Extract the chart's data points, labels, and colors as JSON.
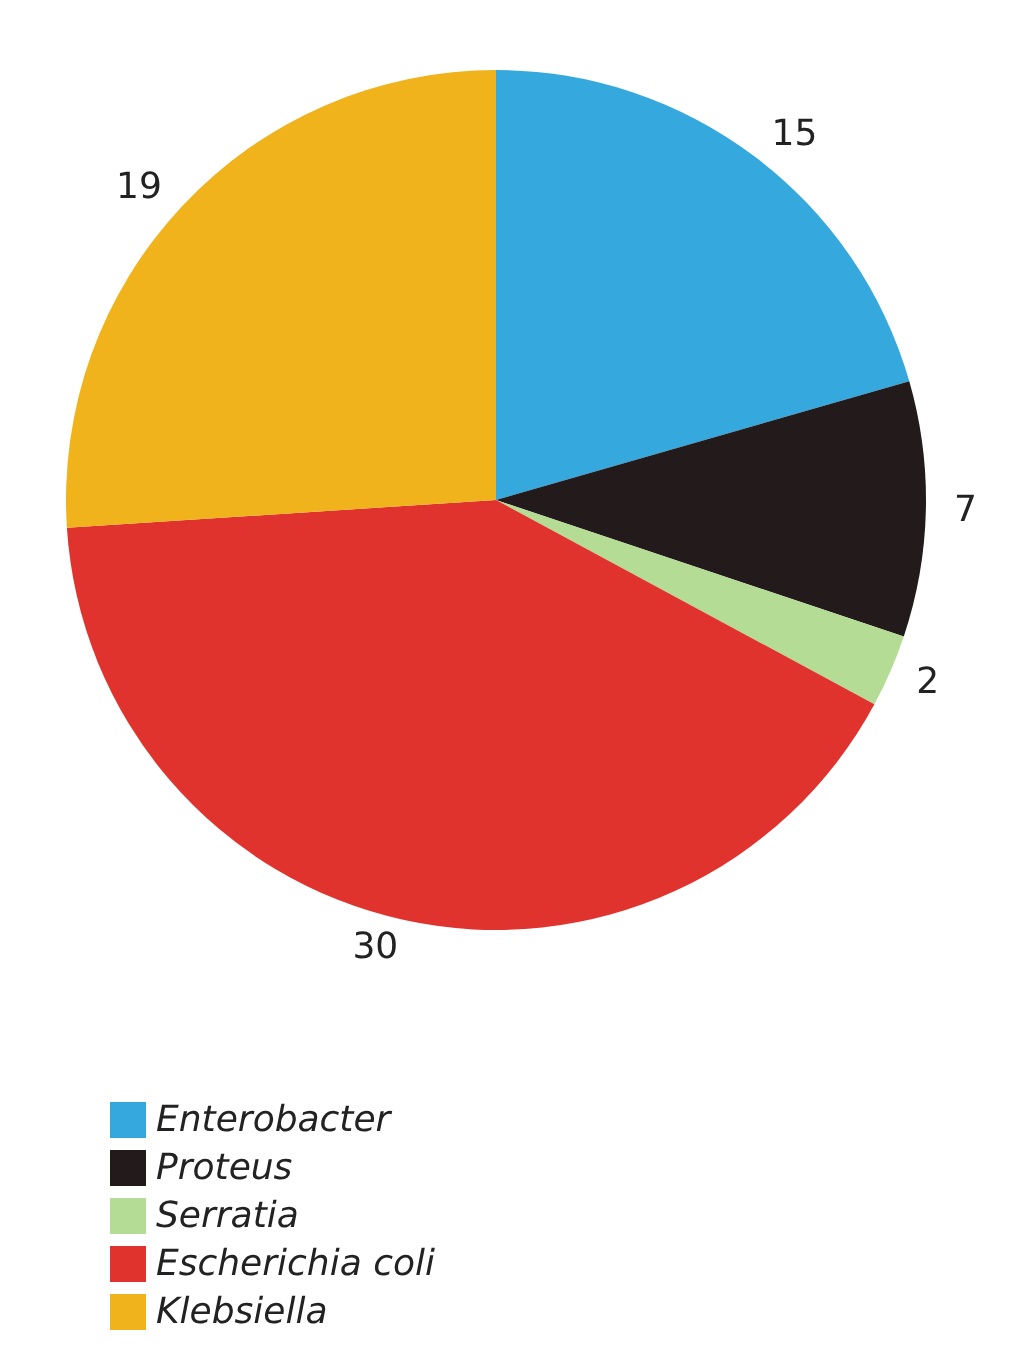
{
  "chart_data": {
    "type": "pie",
    "categories": [
      "Enterobacter",
      "Proteus",
      "Serratia",
      "Escherichia coli",
      "Klebsiella"
    ],
    "values": [
      15,
      7,
      2,
      30,
      19
    ],
    "colors": [
      "#35a8de",
      "#231a1b",
      "#b4dc94",
      "#e0332e",
      "#f0b31b"
    ],
    "data_labels": true,
    "legend": "bottom left"
  }
}
